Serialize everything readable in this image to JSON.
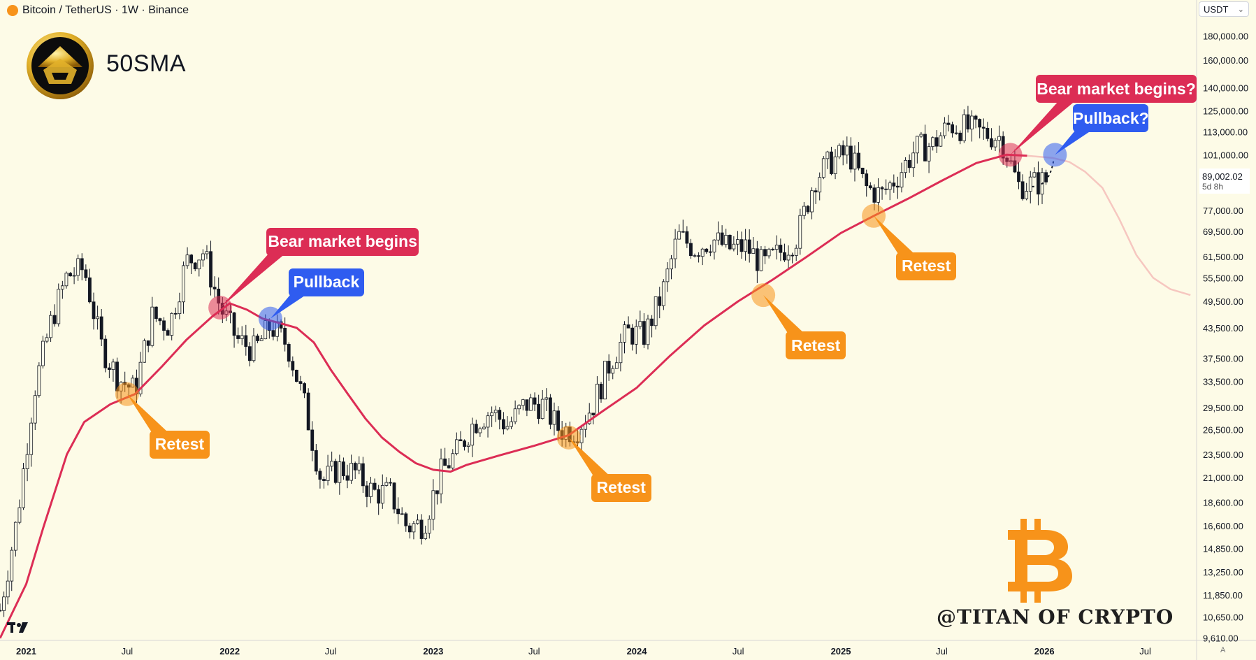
{
  "header": {
    "symbol_title": "Bitcoin / TetherUS · 1W · Binance",
    "currency": "USDT"
  },
  "brand": {
    "label": "50SMA",
    "watermark": "@TITAN OF CRYPTO"
  },
  "price_tag": {
    "value": "89,002.02",
    "countdown": "5d 8h"
  },
  "colors": {
    "background": "#fdfbe7",
    "sma_line": "#dc2d55",
    "sma_projection": "#f6c7c0",
    "retest_marker": "#f7931a",
    "bear_marker": "#dc2d55",
    "pullback_marker": "#2f5cf0",
    "bitcoin_logo": "#f7931a"
  },
  "icons": [
    "bitcoin-logo-icon",
    "brand-avatar-icon",
    "tradingview-logo-icon",
    "chevron-down-icon"
  ],
  "chart_data": {
    "type": "line",
    "scale": "log",
    "y_ticks": [
      180000,
      160000,
      140000,
      125000,
      113000,
      101000,
      89002.02,
      77000,
      69500,
      61500,
      55500,
      49500,
      43500,
      37500,
      33500,
      29500,
      26500,
      23500,
      21000,
      18600,
      16600,
      14850,
      13250,
      11850,
      10650,
      9610
    ],
    "y_tick_labels": [
      "180,000.00",
      "160,000.00",
      "140,000.00",
      "125,000.00",
      "113,000.00",
      "101,000.00",
      "89,002.02",
      "77,000.00",
      "69,500.00",
      "61,500.00",
      "55,500.00",
      "49,500.00",
      "43,500.00",
      "37,500.00",
      "33,500.00",
      "29,500.00",
      "26,500.00",
      "23,500.00",
      "21,000.00",
      "18,600.00",
      "16,600.00",
      "14,850.00",
      "13,250.00",
      "11,850.00",
      "10,650.00",
      "9,610.00"
    ],
    "x_ticks": [
      "2021-01-01",
      "2021-07-01",
      "2022-01-01",
      "2022-07-01",
      "2023-01-01",
      "2023-07-01",
      "2024-01-01",
      "2024-07-01",
      "2025-01-01",
      "2025-07-01",
      "2026-01-01",
      "2026-07-01"
    ],
    "x_tick_labels": [
      "2021",
      "Jul",
      "2022",
      "Jul",
      "2023",
      "Jul",
      "2024",
      "Jul",
      "2025",
      "Jul",
      "2026",
      "Jul"
    ],
    "xlim": [
      "2020-11-15",
      "2026-10-01"
    ],
    "ylim": [
      9500,
      195000
    ],
    "series": [
      {
        "style": "line",
        "points": [
          [
            "2020-11-15",
            9600
          ],
          [
            "2021-01-01",
            12500
          ],
          [
            "2021-02-01",
            16500
          ],
          [
            "2021-03-15",
            23500
          ],
          [
            "2021-04-15",
            27500
          ],
          [
            "2021-06-01",
            30000
          ],
          [
            "2021-07-15",
            31500
          ],
          [
            "2021-09-01",
            36000
          ],
          [
            "2021-10-15",
            41000
          ],
          [
            "2021-12-01",
            46000
          ],
          [
            "2022-01-01",
            49000
          ],
          [
            "2022-02-01",
            47500
          ],
          [
            "2022-03-01",
            45500
          ],
          [
            "2022-04-01",
            44500
          ],
          [
            "2022-05-01",
            43500
          ],
          [
            "2022-06-01",
            40500
          ],
          [
            "2022-07-01",
            35500
          ],
          [
            "2022-08-01",
            31500
          ],
          [
            "2022-09-01",
            28000
          ],
          [
            "2022-10-01",
            25500
          ],
          [
            "2022-11-01",
            23800
          ],
          [
            "2022-12-01",
            22500
          ],
          [
            "2023-01-01",
            21800
          ],
          [
            "2023-02-01",
            21600
          ],
          [
            "2023-03-01",
            22300
          ],
          [
            "2023-05-01",
            23400
          ],
          [
            "2023-07-01",
            24500
          ],
          [
            "2023-09-01",
            25800
          ],
          [
            "2023-11-01",
            29000
          ],
          [
            "2024-01-01",
            32500
          ],
          [
            "2024-03-01",
            38000
          ],
          [
            "2024-05-01",
            44000
          ],
          [
            "2024-07-01",
            49500
          ],
          [
            "2024-09-01",
            55000
          ],
          [
            "2024-11-01",
            61500
          ],
          [
            "2025-01-01",
            69000
          ],
          [
            "2025-03-01",
            75000
          ],
          [
            "2025-05-01",
            81500
          ],
          [
            "2025-07-01",
            89000
          ],
          [
            "2025-09-01",
            97000
          ],
          [
            "2025-10-25",
            101000
          ],
          [
            "2025-12-01",
            100500
          ]
        ]
      },
      {
        "style": "projection",
        "points": [
          [
            "2025-12-01",
            100500
          ],
          [
            "2026-01-15",
            99500
          ],
          [
            "2026-02-15",
            97500
          ],
          [
            "2026-03-15",
            93000
          ],
          [
            "2026-04-15",
            86000
          ],
          [
            "2026-05-15",
            74000
          ],
          [
            "2026-06-15",
            62000
          ],
          [
            "2026-07-15",
            55500
          ],
          [
            "2026-08-15",
            52500
          ],
          [
            "2026-09-20",
            51000
          ]
        ]
      },
      {
        "style": "candles",
        "points": [
          [
            "2020-11-15",
            11000
          ],
          [
            "2020-12-15",
            17000
          ],
          [
            "2021-01-15",
            32000
          ],
          [
            "2021-02-15",
            45000
          ],
          [
            "2021-03-15",
            56000
          ],
          [
            "2021-04-15",
            58000
          ],
          [
            "2021-05-15",
            40000
          ],
          [
            "2021-06-15",
            34000
          ],
          [
            "2021-07-15",
            32000
          ],
          [
            "2021-08-15",
            46000
          ],
          [
            "2021-09-15",
            44000
          ],
          [
            "2021-10-15",
            60000
          ],
          [
            "2021-11-15",
            63000
          ],
          [
            "2021-12-15",
            48000
          ],
          [
            "2022-01-15",
            41000
          ],
          [
            "2022-02-15",
            39000
          ],
          [
            "2022-03-15",
            44000
          ],
          [
            "2022-04-15",
            40000
          ],
          [
            "2022-05-15",
            30000
          ],
          [
            "2022-06-15",
            20500
          ],
          [
            "2022-07-15",
            22000
          ],
          [
            "2022-08-15",
            21500
          ],
          [
            "2022-09-15",
            19500
          ],
          [
            "2022-10-15",
            19500
          ],
          [
            "2022-11-15",
            16500
          ],
          [
            "2022-12-15",
            16800
          ],
          [
            "2023-01-15",
            21500
          ],
          [
            "2023-02-15",
            24000
          ],
          [
            "2023-03-15",
            27500
          ],
          [
            "2023-04-15",
            29000
          ],
          [
            "2023-05-15",
            27000
          ],
          [
            "2023-06-15",
            30000
          ],
          [
            "2023-07-15",
            30000
          ],
          [
            "2023-08-15",
            26500
          ],
          [
            "2023-09-15",
            26500
          ],
          [
            "2023-10-15",
            30000
          ],
          [
            "2023-11-15",
            37000
          ],
          [
            "2023-12-15",
            42500
          ],
          [
            "2024-01-15",
            42000
          ],
          [
            "2024-02-15",
            51000
          ],
          [
            "2024-03-15",
            68000
          ],
          [
            "2024-04-15",
            64000
          ],
          [
            "2024-05-15",
            67000
          ],
          [
            "2024-06-15",
            64000
          ],
          [
            "2024-07-15",
            64500
          ],
          [
            "2024-08-15",
            59000
          ],
          [
            "2024-09-15",
            63000
          ],
          [
            "2024-10-15",
            68000
          ],
          [
            "2024-11-15",
            90000
          ],
          [
            "2024-12-15",
            98000
          ],
          [
            "2025-01-15",
            102000
          ],
          [
            "2025-02-15",
            86000
          ],
          [
            "2025-03-15",
            83000
          ],
          [
            "2025-04-15",
            92000
          ],
          [
            "2025-05-15",
            104000
          ],
          [
            "2025-06-15",
            106000
          ],
          [
            "2025-07-15",
            117000
          ],
          [
            "2025-08-15",
            115000
          ],
          [
            "2025-09-15",
            112000
          ],
          [
            "2025-10-15",
            110000
          ],
          [
            "2025-11-15",
            87000
          ],
          [
            "2025-12-15",
            88000
          ],
          [
            "2026-01-05",
            89002
          ]
        ]
      }
    ],
    "annotations": [
      {
        "text": "Retest",
        "kind": "retest",
        "x": "2021-07-01",
        "y": 31500
      },
      {
        "text": "Bear market begins",
        "kind": "bear",
        "x": "2021-12-15",
        "y": 48000
      },
      {
        "text": "Pullback",
        "kind": "pullback",
        "x": "2022-03-15",
        "y": 45500
      },
      {
        "text": "Retest",
        "kind": "retest",
        "x": "2023-09-01",
        "y": 25500
      },
      {
        "text": "Retest",
        "kind": "retest",
        "x": "2024-08-15",
        "y": 51000
      },
      {
        "text": "Retest",
        "kind": "retest",
        "x": "2025-03-01",
        "y": 75000
      },
      {
        "text": "Bear market begins?",
        "kind": "bear",
        "x": "2025-11-01",
        "y": 101000
      },
      {
        "text": "Pullback?",
        "kind": "pullback",
        "x": "2026-01-20",
        "y": 101000
      }
    ]
  }
}
